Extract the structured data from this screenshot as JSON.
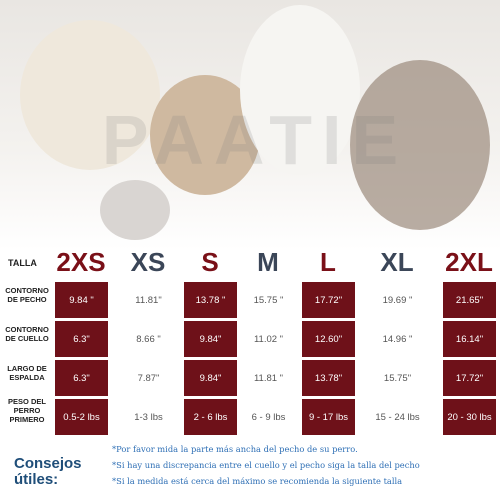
{
  "watermark": "PAATIE",
  "table": {
    "header_label": "TALLA",
    "sizes": [
      "2XS",
      "XS",
      "S",
      "M",
      "L",
      "XL",
      "2XL"
    ],
    "rows": [
      {
        "label": "CONTORNO DE PECHO",
        "values": [
          "9.84 \"",
          "11.81\"",
          "13.78 \"",
          "15.75 \"",
          "17.72\"",
          "19.69 \"",
          "21.65\""
        ]
      },
      {
        "label": "CONTORNO DE CUELLO",
        "values": [
          "6.3\"",
          "8.66 \"",
          "9.84\"",
          "11.02 \"",
          "12.60\"",
          "14.96 \"",
          "16.14\""
        ]
      },
      {
        "label": "LARGO DE ESPALDA",
        "values": [
          "6.3\"",
          "7.87\"",
          "9.84\"",
          "11.81 \"",
          "13.78\"",
          "15.75\"",
          "17.72\""
        ]
      },
      {
        "label": "PESO DEL PERRO PRIMERO",
        "values": [
          "0.5-2 lbs",
          "1-3 lbs",
          "2 - 6 lbs",
          "6 - 9 lbs",
          "9 - 17 lbs",
          "15 - 24 lbs",
          "20 - 30 lbs"
        ]
      }
    ]
  },
  "tips": {
    "title": "Consejos útiles:",
    "items": [
      "*Por favor mida la parte más ancha del pecho de su perro.",
      "*Si hay una discrepancia entre el cuello y el pecho siga la talla del pecho",
      "*Si la medida está cerca del máximo se recomienda la siguiente talla"
    ]
  }
}
